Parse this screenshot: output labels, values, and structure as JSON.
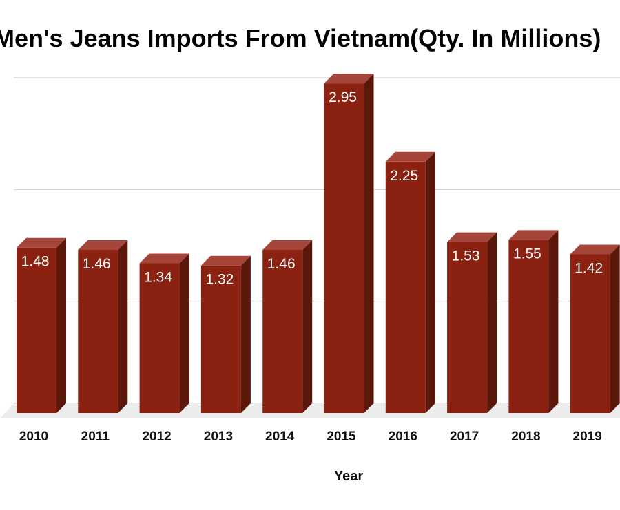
{
  "chart_data": {
    "type": "bar",
    "title": "Men's Jeans Imports From Vietnam(Qty. In Millions)",
    "xlabel": "Year",
    "ylabel": "",
    "categories": [
      "2010",
      "2011",
      "2012",
      "2013",
      "2014",
      "2015",
      "2016",
      "2017",
      "2018",
      "2019"
    ],
    "values": [
      1.48,
      1.46,
      1.34,
      1.32,
      1.46,
      2.95,
      2.25,
      1.53,
      1.55,
      1.42
    ],
    "ylim": [
      0,
      3
    ],
    "grid": true,
    "legend": "none",
    "colors": {
      "bar_front": "#8b2211",
      "bar_side": "#5c170b",
      "bar_top": "#a5453a",
      "grid": "#cccccc",
      "floor": "#ececec"
    }
  }
}
